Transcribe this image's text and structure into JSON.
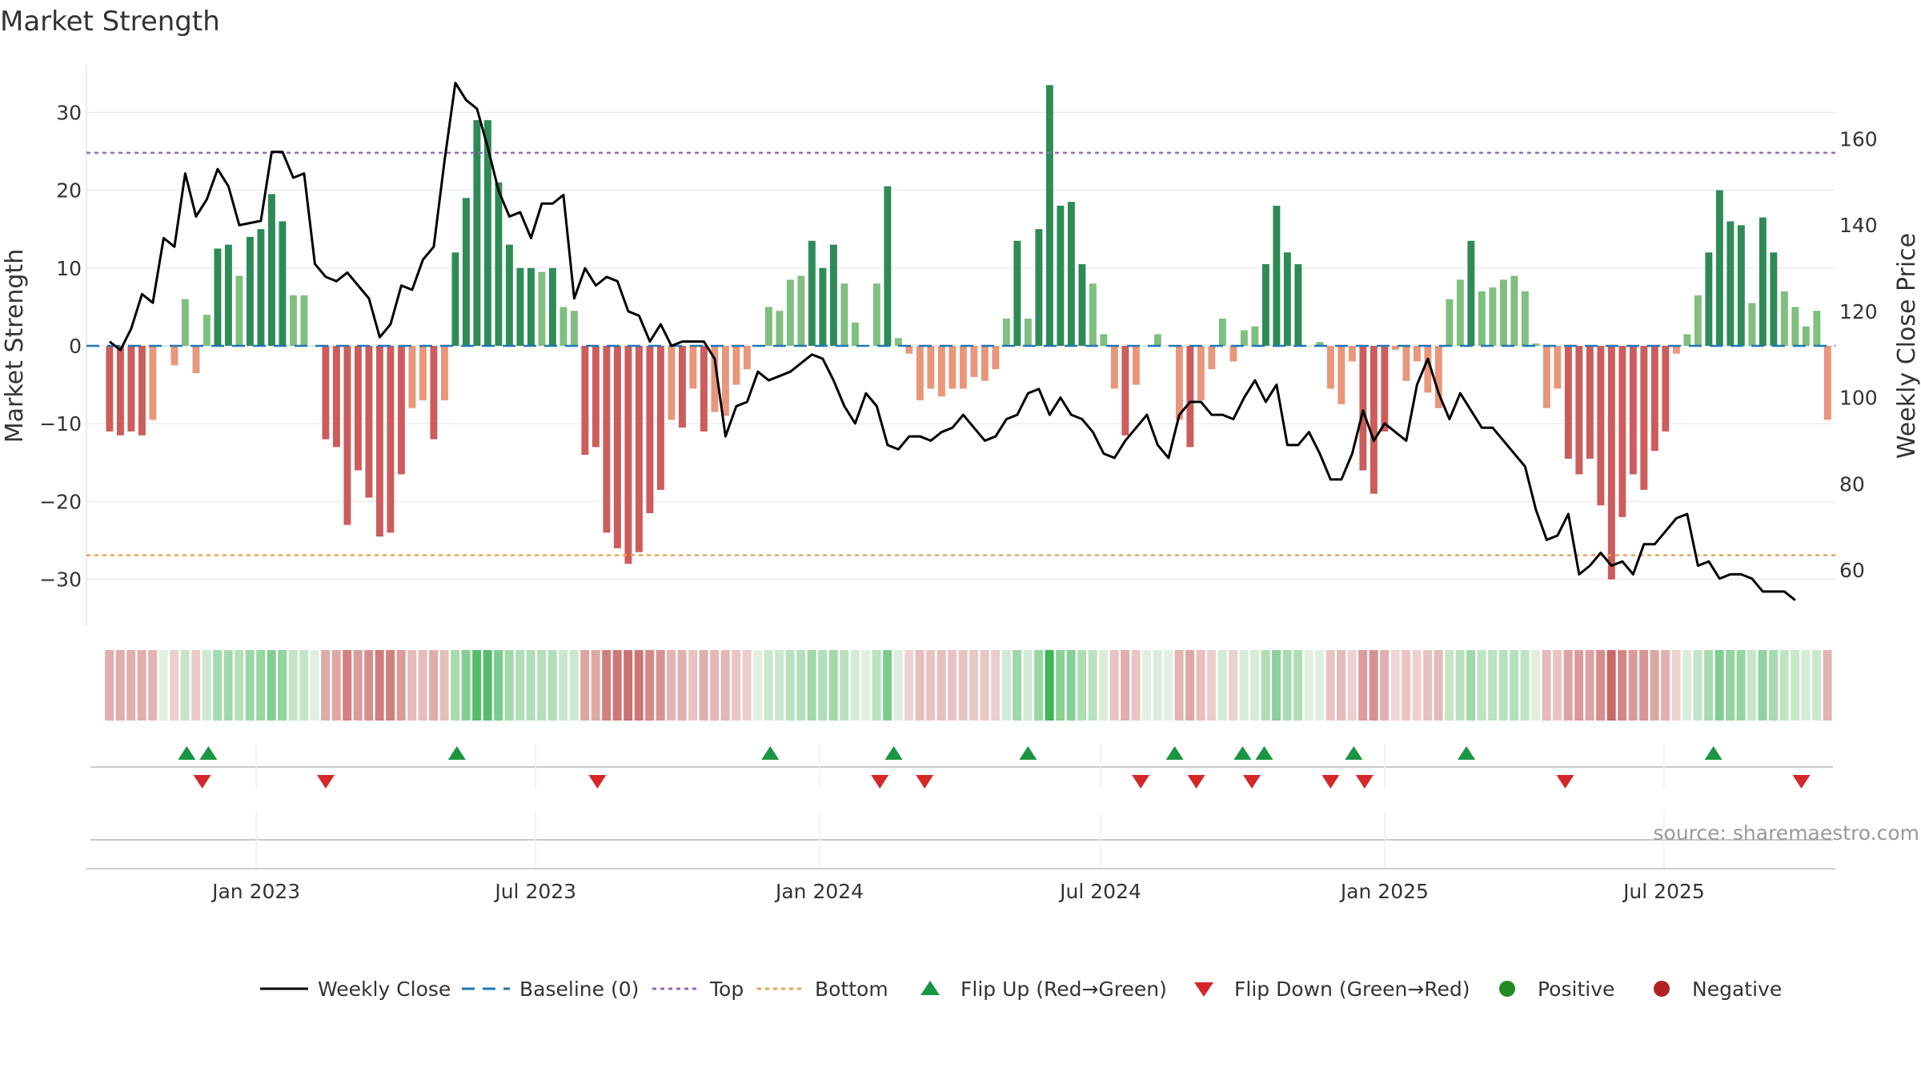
{
  "chart_data": {
    "type": "bar",
    "title": "Market Strength",
    "ylabel_left": "Market Strength",
    "ylabel_right": "Weekly Close Price",
    "ylim_left": [
      -36,
      36
    ],
    "ylim_right": [
      47,
      177
    ],
    "yticks_left": [
      30,
      20,
      10,
      0,
      -10,
      -20,
      -30
    ],
    "ytick_labels_left": [
      "30",
      "20",
      "10",
      "0",
      "−10",
      "−20",
      "−30"
    ],
    "yticks_right": [
      160,
      140,
      120,
      100,
      80,
      60
    ],
    "ytick_labels_right": [
      "160",
      "140",
      "120",
      "100",
      "80",
      "60"
    ],
    "x_range": [
      -15,
      1118
    ],
    "x_ticks": [
      {
        "day": 95,
        "label": "Jan 2023"
      },
      {
        "day": 276,
        "label": "Jul 2023"
      },
      {
        "day": 460,
        "label": "Jan 2024"
      },
      {
        "day": 642,
        "label": "Jul 2024"
      },
      {
        "day": 826,
        "label": "Jan 2025"
      },
      {
        "day": 1007,
        "label": "Jul 2025"
      }
    ],
    "reference_lines": {
      "baseline": 0,
      "top": 24.8,
      "bottom": -26.9
    },
    "colors": {
      "strong_pos": "#2e8b57",
      "weak_pos": "#7fbf7f",
      "strong_neg": "#cd5c5c",
      "weak_neg": "#e9967a",
      "close_line": "#000000",
      "baseline": "#1f77b4",
      "top": "#9467bd",
      "bottom": "#f0a050",
      "flip_up": "#1a9641",
      "flip_down": "#d62728",
      "positive": "#228b22",
      "negative": "#b22222"
    },
    "bar_start_day": 0,
    "bar_spacing_days": 7,
    "strength": [
      -11,
      -11.5,
      -11,
      -11.5,
      -9.5,
      0,
      -2.5,
      6,
      -3.5,
      4,
      12.5,
      13,
      9,
      14,
      15,
      19.5,
      16,
      6.5,
      6.5,
      0,
      -12,
      -13,
      -23,
      -16,
      -19.5,
      -24.5,
      -24,
      -16.5,
      -8,
      -7,
      -12,
      -7,
      12,
      19,
      29,
      29,
      21,
      13,
      10,
      10,
      9.5,
      10,
      5,
      4.5,
      -14,
      -13,
      -24,
      -26,
      -28,
      -26.5,
      -21.5,
      -18.5,
      -9.5,
      -10.5,
      -5.5,
      -11,
      -8.5,
      -9,
      -5,
      -3,
      0,
      5,
      4.5,
      8.5,
      9,
      13.5,
      10,
      13,
      8,
      3,
      0,
      8,
      20.5,
      1,
      -1,
      -7,
      -5.5,
      -6.5,
      -5.5,
      -5.5,
      -4,
      -4.5,
      -3,
      3.5,
      13.5,
      3.5,
      15,
      33.5,
      18,
      18.5,
      10.5,
      8,
      1.5,
      -5.5,
      -11.5,
      -5,
      0,
      1.5,
      0,
      -9.5,
      -13,
      -7,
      -3,
      3.5,
      -2,
      2,
      2.5,
      10.5,
      18,
      12,
      10.5,
      0,
      0.5,
      -5.5,
      -7.5,
      -2,
      -16,
      -19,
      -11,
      -0.5,
      -4.5,
      -2,
      -6,
      -8,
      6,
      8.5,
      13.5,
      7,
      7.5,
      8.5,
      9,
      7,
      0.3,
      -8,
      -5.5,
      -14.5,
      -16.5,
      -14.5,
      -20.5,
      -30,
      -22,
      -16.5,
      -18.5,
      -13.5,
      -11,
      -1,
      1.5,
      6.5,
      12,
      20,
      16,
      15.5,
      5.5,
      16.5,
      12,
      7,
      5,
      2.5,
      4.5,
      -9.5
    ],
    "close_series": [
      {
        "day": 0,
        "price": 113
      },
      {
        "day": 7,
        "price": 111
      },
      {
        "day": 14,
        "price": 116
      },
      {
        "day": 21,
        "price": 124
      },
      {
        "day": 28,
        "price": 122
      },
      {
        "day": 35,
        "price": 137
      },
      {
        "day": 42,
        "price": 135
      },
      {
        "day": 49,
        "price": 152
      },
      {
        "day": 56,
        "price": 142
      },
      {
        "day": 63,
        "price": 146
      },
      {
        "day": 70,
        "price": 153
      },
      {
        "day": 77,
        "price": 149
      },
      {
        "day": 84,
        "price": 140
      },
      {
        "day": 98,
        "price": 141
      },
      {
        "day": 105,
        "price": 157
      },
      {
        "day": 112,
        "price": 157
      },
      {
        "day": 119,
        "price": 151
      },
      {
        "day": 126,
        "price": 152
      },
      {
        "day": 133,
        "price": 131
      },
      {
        "day": 140,
        "price": 128
      },
      {
        "day": 147,
        "price": 127
      },
      {
        "day": 154,
        "price": 129
      },
      {
        "day": 161,
        "price": 126
      },
      {
        "day": 168,
        "price": 123
      },
      {
        "day": 175,
        "price": 114
      },
      {
        "day": 182,
        "price": 117
      },
      {
        "day": 189,
        "price": 126
      },
      {
        "day": 196,
        "price": 125
      },
      {
        "day": 203,
        "price": 132
      },
      {
        "day": 210,
        "price": 135
      },
      {
        "day": 217,
        "price": 155
      },
      {
        "day": 224,
        "price": 173
      },
      {
        "day": 231,
        "price": 169
      },
      {
        "day": 238,
        "price": 167
      },
      {
        "day": 245,
        "price": 158
      },
      {
        "day": 252,
        "price": 148
      },
      {
        "day": 259,
        "price": 142
      },
      {
        "day": 266,
        "price": 143
      },
      {
        "day": 273,
        "price": 137
      },
      {
        "day": 280,
        "price": 145
      },
      {
        "day": 287,
        "price": 145
      },
      {
        "day": 294,
        "price": 147
      },
      {
        "day": 301,
        "price": 123
      },
      {
        "day": 308,
        "price": 130
      },
      {
        "day": 315,
        "price": 126
      },
      {
        "day": 322,
        "price": 128
      },
      {
        "day": 329,
        "price": 127
      },
      {
        "day": 336,
        "price": 120
      },
      {
        "day": 343,
        "price": 119
      },
      {
        "day": 350,
        "price": 113
      },
      {
        "day": 357,
        "price": 117
      },
      {
        "day": 364,
        "price": 112
      },
      {
        "day": 371,
        "price": 113
      },
      {
        "day": 378,
        "price": 113
      },
      {
        "day": 385,
        "price": 113
      },
      {
        "day": 392,
        "price": 109
      },
      {
        "day": 399,
        "price": 91
      },
      {
        "day": 406,
        "price": 98
      },
      {
        "day": 413,
        "price": 99
      },
      {
        "day": 420,
        "price": 106
      },
      {
        "day": 427,
        "price": 104
      },
      {
        "day": 434,
        "price": 105
      },
      {
        "day": 441,
        "price": 106
      },
      {
        "day": 448,
        "price": 108
      },
      {
        "day": 455,
        "price": 110
      },
      {
        "day": 462,
        "price": 109
      },
      {
        "day": 469,
        "price": 104
      },
      {
        "day": 476,
        "price": 98
      },
      {
        "day": 483,
        "price": 94
      },
      {
        "day": 490,
        "price": 101
      },
      {
        "day": 497,
        "price": 98
      },
      {
        "day": 504,
        "price": 89
      },
      {
        "day": 511,
        "price": 88
      },
      {
        "day": 518,
        "price": 91
      },
      {
        "day": 525,
        "price": 91
      },
      {
        "day": 532,
        "price": 90
      },
      {
        "day": 539,
        "price": 92
      },
      {
        "day": 546,
        "price": 93
      },
      {
        "day": 553,
        "price": 96
      },
      {
        "day": 560,
        "price": 93
      },
      {
        "day": 567,
        "price": 90
      },
      {
        "day": 574,
        "price": 91
      },
      {
        "day": 581,
        "price": 95
      },
      {
        "day": 588,
        "price": 96
      },
      {
        "day": 595,
        "price": 101
      },
      {
        "day": 602,
        "price": 102
      },
      {
        "day": 609,
        "price": 96
      },
      {
        "day": 616,
        "price": 100
      },
      {
        "day": 623,
        "price": 96
      },
      {
        "day": 630,
        "price": 95
      },
      {
        "day": 637,
        "price": 92
      },
      {
        "day": 644,
        "price": 87
      },
      {
        "day": 651,
        "price": 86
      },
      {
        "day": 658,
        "price": 90
      },
      {
        "day": 665,
        "price": 93
      },
      {
        "day": 672,
        "price": 96
      },
      {
        "day": 679,
        "price": 89
      },
      {
        "day": 686,
        "price": 86
      },
      {
        "day": 693,
        "price": 96
      },
      {
        "day": 700,
        "price": 99
      },
      {
        "day": 707,
        "price": 99
      },
      {
        "day": 714,
        "price": 96
      },
      {
        "day": 721,
        "price": 96
      },
      {
        "day": 728,
        "price": 95
      },
      {
        "day": 735,
        "price": 100
      },
      {
        "day": 742,
        "price": 104
      },
      {
        "day": 749,
        "price": 99
      },
      {
        "day": 756,
        "price": 103
      },
      {
        "day": 763,
        "price": 89
      },
      {
        "day": 770,
        "price": 89
      },
      {
        "day": 777,
        "price": 92
      },
      {
        "day": 784,
        "price": 87
      },
      {
        "day": 791,
        "price": 81
      },
      {
        "day": 798,
        "price": 81
      },
      {
        "day": 805,
        "price": 87
      },
      {
        "day": 812,
        "price": 97
      },
      {
        "day": 819,
        "price": 90
      },
      {
        "day": 826,
        "price": 94
      },
      {
        "day": 833,
        "price": 92
      },
      {
        "day": 840,
        "price": 90
      },
      {
        "day": 847,
        "price": 103
      },
      {
        "day": 854,
        "price": 109
      },
      {
        "day": 861,
        "price": 101
      },
      {
        "day": 868,
        "price": 95
      },
      {
        "day": 875,
        "price": 101
      },
      {
        "day": 882,
        "price": 97
      },
      {
        "day": 889,
        "price": 93
      },
      {
        "day": 896,
        "price": 93
      },
      {
        "day": 903,
        "price": 90
      },
      {
        "day": 910,
        "price": 87
      },
      {
        "day": 917,
        "price": 84
      },
      {
        "day": 924,
        "price": 74
      },
      {
        "day": 931,
        "price": 67
      },
      {
        "day": 938,
        "price": 68
      },
      {
        "day": 945,
        "price": 73
      },
      {
        "day": 952,
        "price": 59
      },
      {
        "day": 959,
        "price": 61
      },
      {
        "day": 966,
        "price": 64
      },
      {
        "day": 973,
        "price": 61
      },
      {
        "day": 980,
        "price": 62
      },
      {
        "day": 987,
        "price": 59
      },
      {
        "day": 994,
        "price": 66
      },
      {
        "day": 1001,
        "price": 66
      },
      {
        "day": 1008,
        "price": 69
      },
      {
        "day": 1015,
        "price": 72
      },
      {
        "day": 1022,
        "price": 73
      },
      {
        "day": 1029,
        "price": 61
      },
      {
        "day": 1036,
        "price": 62
      },
      {
        "day": 1043,
        "price": 58
      },
      {
        "day": 1050,
        "price": 59
      },
      {
        "day": 1057,
        "price": 59
      },
      {
        "day": 1064,
        "price": 58
      },
      {
        "day": 1071,
        "price": 55
      },
      {
        "day": 1078,
        "price": 55
      },
      {
        "day": 1085,
        "price": 55
      },
      {
        "day": 1092,
        "price": 53
      }
    ],
    "flip_up_days": [
      50,
      64,
      225,
      428,
      508,
      595,
      690,
      734,
      748,
      806,
      879,
      1039
    ],
    "flip_down_days": [
      60,
      140,
      316,
      499,
      528,
      668,
      704,
      740,
      791,
      813,
      943,
      1096
    ],
    "legend": [
      {
        "key": "close",
        "label": "Weekly Close"
      },
      {
        "key": "baseline",
        "label": "Baseline (0)"
      },
      {
        "key": "top",
        "label": "Top"
      },
      {
        "key": "bottom",
        "label": "Bottom"
      },
      {
        "key": "flip_up",
        "label": "Flip Up (Red→Green)"
      },
      {
        "key": "flip_down",
        "label": "Flip Down (Green→Red)"
      },
      {
        "key": "positive",
        "label": "Positive"
      },
      {
        "key": "negative",
        "label": "Negative"
      }
    ],
    "source": "source: sharemaestro.com"
  }
}
